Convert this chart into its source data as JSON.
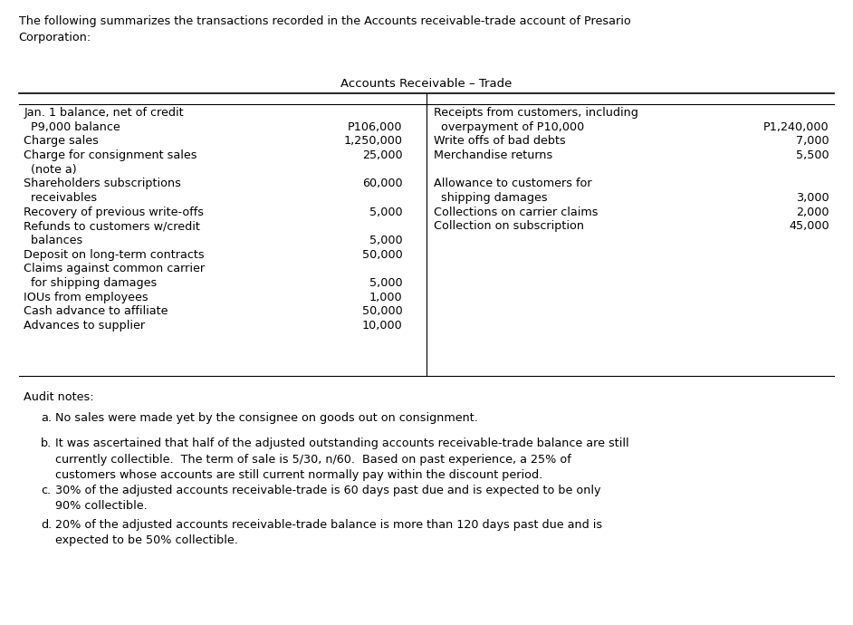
{
  "title_text": "The following summarizes the transactions recorded in the Accounts receivable-trade account of Presario\nCorporation:",
  "table_title": "Accounts Receivable – Trade",
  "left_entries": [
    [
      "Jan. 1 balance, net of credit",
      ""
    ],
    [
      "  P9,000 balance",
      "P106,000"
    ],
    [
      "Charge sales",
      "1,250,000"
    ],
    [
      "Charge for consignment sales",
      "25,000"
    ],
    [
      "  (note a)",
      ""
    ],
    [
      "Shareholders subscriptions",
      "60,000"
    ],
    [
      "  receivables",
      ""
    ],
    [
      "Recovery of previous write-offs",
      "5,000"
    ],
    [
      "Refunds to customers w/credit",
      ""
    ],
    [
      "  balances",
      "5,000"
    ],
    [
      "Deposit on long-term contracts",
      "50,000"
    ],
    [
      "Claims against common carrier",
      ""
    ],
    [
      "  for shipping damages",
      "5,000"
    ],
    [
      "IOUs from employees",
      "1,000"
    ],
    [
      "Cash advance to affiliate",
      "50,000"
    ],
    [
      "Advances to supplier",
      "10,000"
    ]
  ],
  "right_entries": [
    [
      "Receipts from customers, including",
      ""
    ],
    [
      "  overpayment of P10,000",
      "P1,240,000"
    ],
    [
      "Write offs of bad debts",
      "7,000"
    ],
    [
      "Merchandise returns",
      "5,500"
    ],
    [
      "",
      ""
    ],
    [
      "Allowance to customers for",
      ""
    ],
    [
      "  shipping damages",
      "3,000"
    ],
    [
      "Collections on carrier claims",
      "2,000"
    ],
    [
      "Collection on subscription",
      "45,000"
    ]
  ],
  "audit_notes_label": "Audit notes:",
  "audit_notes": [
    [
      "a.",
      "No sales were made yet by the consignee on goods out on consignment."
    ],
    [
      "b.",
      "It was ascertained that half of the adjusted outstanding accounts receivable-trade balance are still\ncurrently collectible.  The term of sale is 5/30, n/60.  Based on past experience, a 25% of\ncustomers whose accounts are still current normally pay within the discount period."
    ],
    [
      "c.",
      "30% of the adjusted accounts receivable-trade is 60 days past due and is expected to be only\n90% collectible."
    ],
    [
      "d.",
      "20% of the adjusted accounts receivable-trade balance is more than 120 days past due and is\nexpected to be 50% collectible."
    ]
  ],
  "bg_color": "#ffffff",
  "text_color": "#000000",
  "font_size": 9.2,
  "title_font_size": 9.2
}
